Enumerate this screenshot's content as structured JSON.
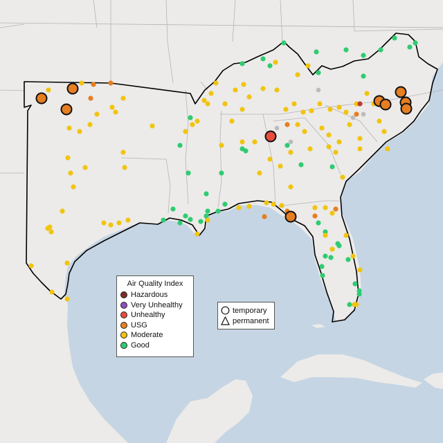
{
  "legend": {
    "title": "Air Quality Index",
    "categories": [
      {
        "label": "Hazardous",
        "color": "#7e2a2a"
      },
      {
        "label": "Very Unhealthy",
        "color": "#8f4fb8"
      },
      {
        "label": "Unhealthy",
        "color": "#e74c3c"
      },
      {
        "label": "USG",
        "color": "#e67e22"
      },
      {
        "label": "Moderate",
        "color": "#f1c40f"
      },
      {
        "label": "Good",
        "color": "#2ecc71"
      }
    ],
    "types": [
      {
        "label": "temporary",
        "icon": "circle-icon"
      },
      {
        "label": "permanent",
        "icon": "triangle-icon"
      }
    ]
  },
  "colors": {
    "land": "#ecebe9",
    "water": "#c5d5e4",
    "region_border": "#000000",
    "state_border": "#b5b3b3"
  }
}
